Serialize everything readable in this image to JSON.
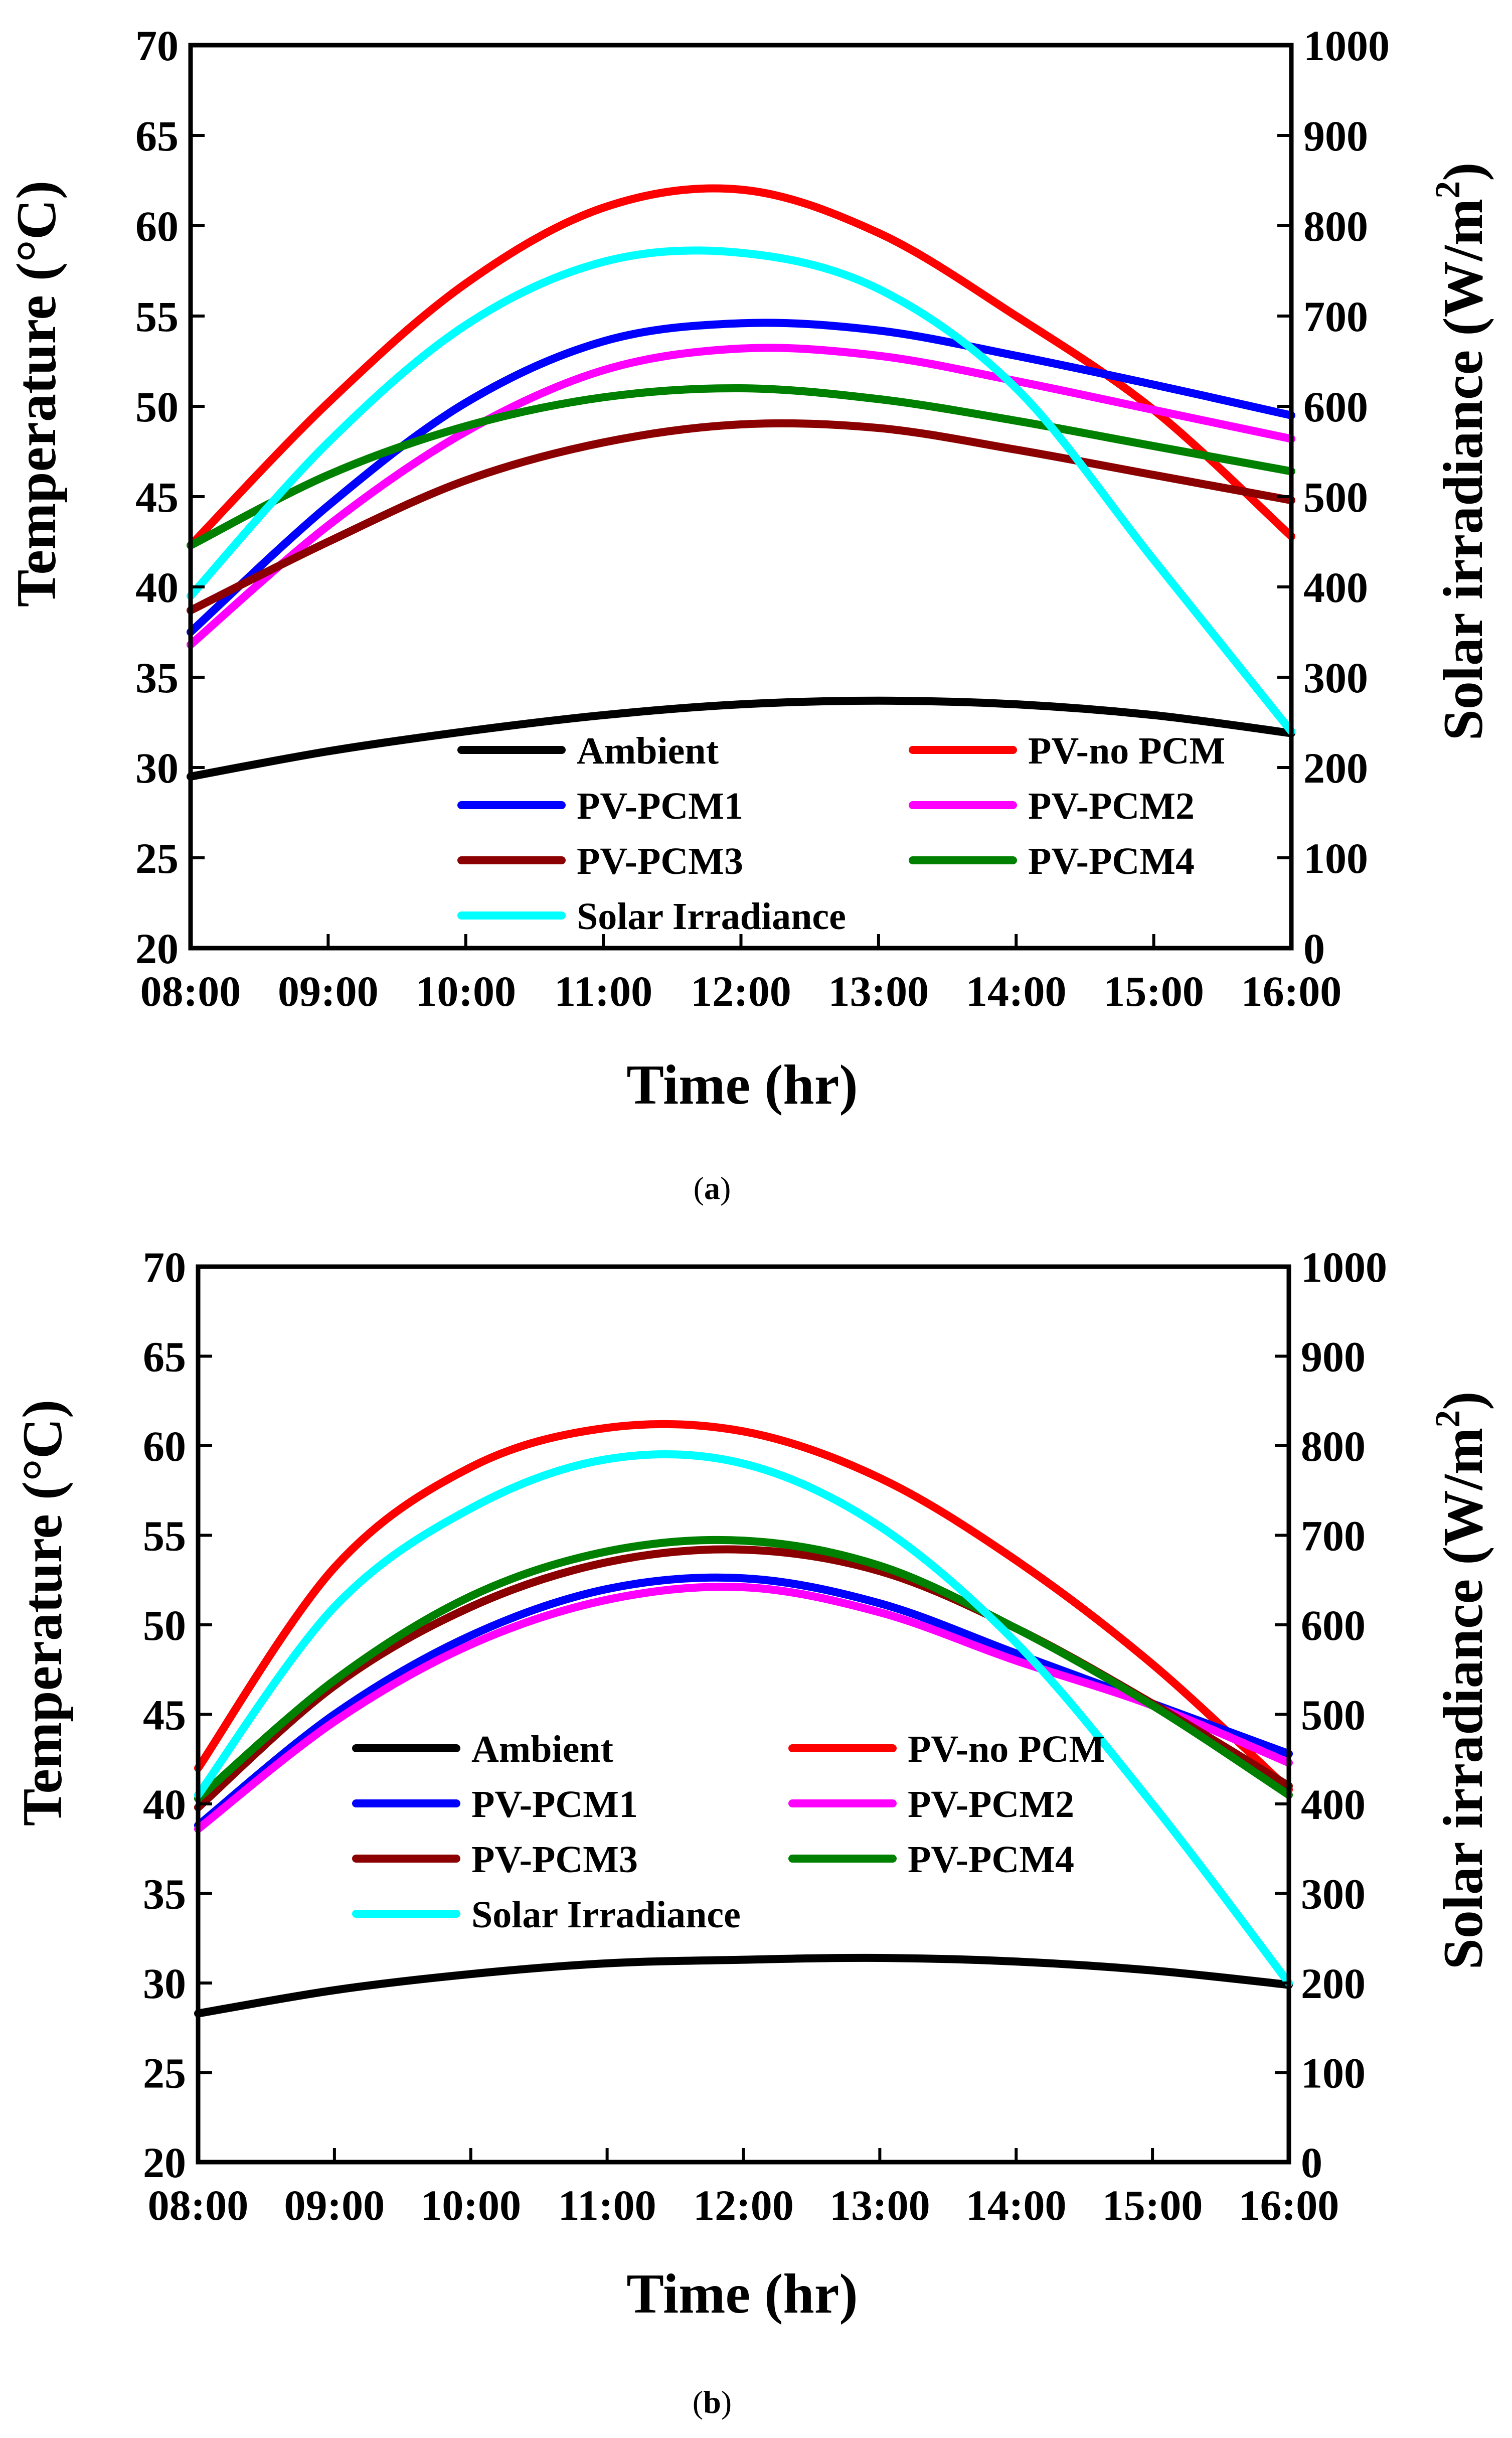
{
  "chart_data": [
    {
      "id": "a",
      "type": "line",
      "caption_open": "(",
      "caption_letter": "a",
      "caption_close": ")",
      "xlabel": "Time (hr)",
      "ylabel": "Temperature (°C)",
      "y2label": "Solar irradiance (W/m",
      "y2label_sup": "2",
      "y2label_end": ")",
      "x_ticks": [
        "08:00",
        "09:00",
        "10:00",
        "11:00",
        "12:00",
        "13:00",
        "14:00",
        "15:00",
        "16:00"
      ],
      "x": [
        8,
        9,
        10,
        11,
        12,
        13,
        14,
        15,
        16
      ],
      "ylim": [
        20,
        70
      ],
      "y_ticks": [
        20,
        25,
        30,
        35,
        40,
        45,
        50,
        55,
        60,
        65,
        70
      ],
      "y2lim": [
        0,
        1000
      ],
      "y2_ticks": [
        0,
        100,
        200,
        300,
        400,
        500,
        600,
        700,
        800,
        900,
        1000
      ],
      "series": [
        {
          "name": "Ambient",
          "color": "#000000",
          "axis": "left",
          "values": [
            29.5,
            30.9,
            32.0,
            32.9,
            33.5,
            33.7,
            33.5,
            32.9,
            31.9
          ]
        },
        {
          "name": "PV-no PCM",
          "color": "#ff0000",
          "axis": "left",
          "values": [
            42.3,
            50.2,
            56.8,
            61.0,
            62.0,
            59.6,
            55.0,
            49.8,
            42.8
          ]
        },
        {
          "name": "PV-PCM1",
          "color": "#0000ff",
          "axis": "left",
          "values": [
            37.5,
            44.5,
            50.2,
            53.6,
            54.6,
            54.2,
            52.8,
            51.2,
            49.5
          ]
        },
        {
          "name": "PV-PCM2",
          "color": "#ff00ff",
          "axis": "left",
          "values": [
            36.8,
            43.4,
            48.6,
            52.0,
            53.2,
            52.8,
            51.4,
            49.8,
            48.2
          ]
        },
        {
          "name": "PV-PCM3",
          "color": "#8b0000",
          "axis": "left",
          "values": [
            38.7,
            42.5,
            45.9,
            48.0,
            49.0,
            48.8,
            47.6,
            46.2,
            44.8
          ]
        },
        {
          "name": "PV-PCM4",
          "color": "#008000",
          "axis": "left",
          "values": [
            42.3,
            46.2,
            48.9,
            50.5,
            51.0,
            50.4,
            49.2,
            47.8,
            46.4
          ]
        },
        {
          "name": "Solar Irradiance",
          "color": "#00ffff",
          "axis": "right",
          "values": [
            390,
            560,
            690,
            760,
            770,
            730,
            620,
            430,
            240
          ]
        }
      ],
      "legend": [
        "Ambient",
        "PV-no PCM",
        "PV-PCM1",
        "PV-PCM2",
        "PV-PCM3",
        "PV-PCM4",
        "Solar Irradiance"
      ]
    },
    {
      "id": "b",
      "type": "line",
      "caption_open": "(",
      "caption_letter": "b",
      "caption_close": ")",
      "xlabel": "Time (hr)",
      "ylabel": "Temperature (°C)",
      "y2label": "Solar irradiance (W/m",
      "y2label_sup": "2",
      "y2label_end": ")",
      "x_ticks": [
        "08:00",
        "09:00",
        "10:00",
        "11:00",
        "12:00",
        "13:00",
        "14:00",
        "15:00",
        "16:00"
      ],
      "x": [
        8,
        9,
        10,
        11,
        12,
        13,
        14,
        15,
        16
      ],
      "ylim": [
        20,
        70
      ],
      "y_ticks": [
        20,
        25,
        30,
        35,
        40,
        45,
        50,
        55,
        60,
        65,
        70
      ],
      "y2lim": [
        0,
        1000
      ],
      "y2_ticks": [
        0,
        100,
        200,
        300,
        400,
        500,
        600,
        700,
        800,
        900,
        1000
      ],
      "series": [
        {
          "name": "Ambient",
          "color": "#000000",
          "axis": "left",
          "values": [
            28.3,
            29.6,
            30.5,
            31.1,
            31.3,
            31.4,
            31.2,
            30.7,
            29.9
          ]
        },
        {
          "name": "PV-no PCM",
          "color": "#ff0000",
          "axis": "left",
          "values": [
            42.0,
            53.2,
            58.8,
            61.0,
            60.8,
            58.2,
            53.6,
            47.8,
            40.8
          ]
        },
        {
          "name": "PV-PCM1",
          "color": "#0000ff",
          "axis": "left",
          "values": [
            38.8,
            45.0,
            49.4,
            52.0,
            52.6,
            51.2,
            48.4,
            45.6,
            42.8
          ]
        },
        {
          "name": "PV-PCM2",
          "color": "#ff00ff",
          "axis": "left",
          "values": [
            38.6,
            44.6,
            48.9,
            51.4,
            52.1,
            50.7,
            48.0,
            45.5,
            42.3
          ]
        },
        {
          "name": "PV-PCM3",
          "color": "#8b0000",
          "axis": "left",
          "values": [
            39.8,
            46.6,
            51.0,
            53.5,
            54.2,
            53.0,
            49.8,
            45.6,
            41.0
          ]
        },
        {
          "name": "PV-PCM4",
          "color": "#008000",
          "axis": "left",
          "values": [
            40.3,
            46.9,
            51.6,
            54.1,
            54.7,
            53.3,
            49.8,
            45.5,
            40.5
          ]
        },
        {
          "name": "Solar Irradiance",
          "color": "#00ffff",
          "axis": "right",
          "values": [
            410,
            620,
            730,
            785,
            780,
            710,
            580,
            400,
            200
          ]
        }
      ],
      "legend": [
        "Ambient",
        "PV-no PCM",
        "PV-PCM1",
        "PV-PCM2",
        "PV-PCM3",
        "PV-PCM4",
        "Solar Irradiance"
      ]
    }
  ]
}
